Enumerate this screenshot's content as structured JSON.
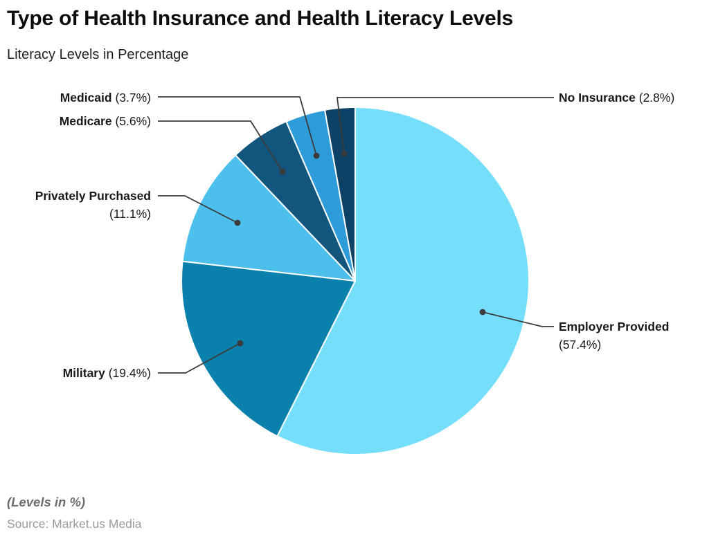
{
  "header": {
    "title": "Type of Health Insurance and Health Literacy Levels",
    "subtitle": "Literacy Levels in Percentage"
  },
  "footer": {
    "note": "(Levels in %)",
    "source": "Source: Market.us Media"
  },
  "chart_data": {
    "type": "pie",
    "title": "Type of Health Insurance and Health Literacy Levels",
    "subtitle": "Literacy Levels in Percentage",
    "units": "percent",
    "order": "clockwise-from-top",
    "label_format": "Name (value%)",
    "leader_line_color": "#3b3b3b",
    "slice_border_color": "#ffffff",
    "segments": [
      {
        "label": "Employer Provided",
        "value": 57.4,
        "color": "#75DEFB"
      },
      {
        "label": "Military",
        "value": 19.4,
        "color": "#0A81AC"
      },
      {
        "label": "Privately Purchased",
        "value": 11.1,
        "color": "#4DBFEC"
      },
      {
        "label": "Medicare",
        "value": 5.6,
        "color": "#12567D"
      },
      {
        "label": "Medicaid",
        "value": 3.7,
        "color": "#2E9CD9"
      },
      {
        "label": "No Insurance",
        "value": 2.8,
        "color": "#0E4166"
      }
    ]
  }
}
